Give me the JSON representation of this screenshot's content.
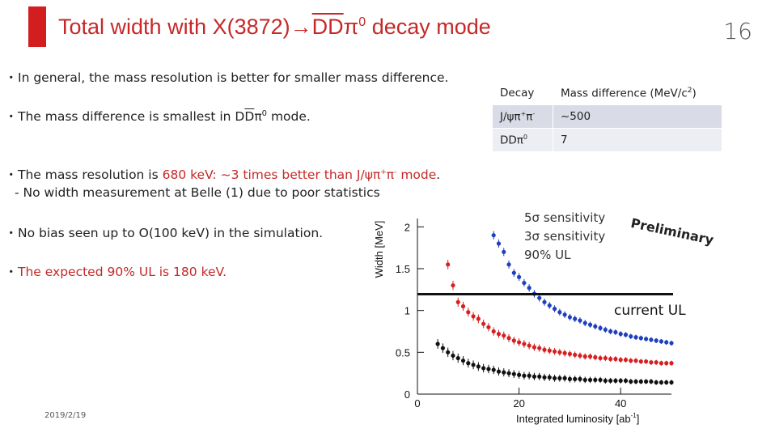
{
  "title": {
    "prefix": "Total width with X(3872)",
    "arrow": "→",
    "dd": "DD",
    "pi": "π",
    "sup": "0",
    "suffix": " decay mode"
  },
  "page_number": "16",
  "bullets": {
    "mark": "・",
    "b1": "In general, the mass resolution is better for smaller mass difference.",
    "b2_pre": "The mass difference is smallest in D",
    "b2_overD": "D",
    "b2_pi": "π",
    "b2_sup": "0",
    "b2_post": " mode.",
    "b3_pre": "The mass resolution is ",
    "b3_red": "680 keV: ~3 times better than J/ψπ",
    "b3_red_sup1": "+",
    "b3_red_mid": "π",
    "b3_red_sup2": "-",
    "b3_red_end": " mode",
    "b3_dot": ".",
    "b3_sub": "- No width measurement at Belle (1) due to poor statistics",
    "b4": "No bias seen up to O(100 keV) in the simulation.",
    "b5": "The expected 90% UL is 180 keV."
  },
  "table": {
    "header": [
      "Decay",
      "Mass difference (MeV/c",
      "2",
      ")"
    ],
    "rows": [
      {
        "decay": "J/ψπ",
        "sup1": "+",
        "pi2": "π",
        "sup2": "-",
        "value": "~500"
      },
      {
        "decay": "DDπ",
        "sup1": "0",
        "pi2": "",
        "sup2": "",
        "value": "7"
      }
    ]
  },
  "legend": {
    "l1": "5σ sensitivity",
    "l2": "3σ sensitivity",
    "l3": "90% UL"
  },
  "preliminary": "Preliminary",
  "current_ul": "current UL",
  "date": "2019/2/19",
  "colors": {
    "title": "#c62828",
    "blue": "#1f3fbf",
    "red": "#d62020",
    "black": "#111111"
  },
  "chart_data": {
    "type": "scatter",
    "xlabel": "Integrated luminosity [ab",
    "xlabel_sup": "-1",
    "xlabel_close": "]",
    "ylabel": "Width [MeV]",
    "xlim": [
      0,
      50
    ],
    "ylim": [
      0,
      2.1
    ],
    "xticks": [
      0,
      20,
      40
    ],
    "yticks": [
      0,
      0.5,
      1,
      1.5,
      2
    ],
    "ytick_labels": [
      "0",
      "0.5",
      "1",
      "1.5",
      "2"
    ],
    "current_ul_y": 1.2,
    "series": [
      {
        "color": "#1f3fbf",
        "x": [
          15,
          16,
          17,
          18,
          19,
          20,
          21,
          22,
          23,
          24,
          25,
          26,
          27,
          28,
          29,
          30,
          31,
          32,
          33,
          34,
          35,
          36,
          37,
          38,
          39,
          40,
          41,
          42,
          43,
          44,
          45,
          46,
          47,
          48,
          49,
          50
        ],
        "y": [
          1.9,
          1.8,
          1.7,
          1.55,
          1.45,
          1.4,
          1.33,
          1.27,
          1.2,
          1.15,
          1.1,
          1.06,
          1.02,
          0.98,
          0.95,
          0.92,
          0.9,
          0.88,
          0.85,
          0.83,
          0.81,
          0.79,
          0.77,
          0.75,
          0.74,
          0.72,
          0.71,
          0.69,
          0.68,
          0.67,
          0.66,
          0.65,
          0.64,
          0.63,
          0.62,
          0.61
        ]
      },
      {
        "color": "#d62020",
        "x": [
          6,
          7,
          8,
          9,
          10,
          11,
          12,
          13,
          14,
          15,
          16,
          17,
          18,
          19,
          20,
          21,
          22,
          23,
          24,
          25,
          26,
          27,
          28,
          29,
          30,
          31,
          32,
          33,
          34,
          35,
          36,
          37,
          38,
          39,
          40,
          41,
          42,
          43,
          44,
          45,
          46,
          47,
          48,
          49,
          50
        ],
        "y": [
          1.55,
          1.3,
          1.1,
          1.05,
          0.98,
          0.93,
          0.9,
          0.84,
          0.8,
          0.75,
          0.72,
          0.7,
          0.67,
          0.64,
          0.62,
          0.6,
          0.58,
          0.56,
          0.55,
          0.53,
          0.52,
          0.51,
          0.5,
          0.49,
          0.48,
          0.47,
          0.46,
          0.45,
          0.45,
          0.44,
          0.43,
          0.43,
          0.42,
          0.42,
          0.41,
          0.41,
          0.4,
          0.4,
          0.39,
          0.39,
          0.38,
          0.38,
          0.37,
          0.37,
          0.37
        ]
      },
      {
        "color": "#111111",
        "x": [
          4,
          5,
          6,
          7,
          8,
          9,
          10,
          11,
          12,
          13,
          14,
          15,
          16,
          17,
          18,
          19,
          20,
          21,
          22,
          23,
          24,
          25,
          26,
          27,
          28,
          29,
          30,
          31,
          32,
          33,
          34,
          35,
          36,
          37,
          38,
          39,
          40,
          41,
          42,
          43,
          44,
          45,
          46,
          47,
          48,
          49,
          50
        ],
        "y": [
          0.6,
          0.55,
          0.5,
          0.46,
          0.43,
          0.4,
          0.37,
          0.35,
          0.33,
          0.31,
          0.3,
          0.29,
          0.27,
          0.26,
          0.25,
          0.24,
          0.23,
          0.22,
          0.22,
          0.21,
          0.21,
          0.2,
          0.2,
          0.19,
          0.19,
          0.19,
          0.18,
          0.18,
          0.18,
          0.17,
          0.17,
          0.17,
          0.17,
          0.16,
          0.16,
          0.16,
          0.16,
          0.16,
          0.15,
          0.15,
          0.15,
          0.15,
          0.15,
          0.14,
          0.14,
          0.14,
          0.14
        ]
      }
    ]
  }
}
